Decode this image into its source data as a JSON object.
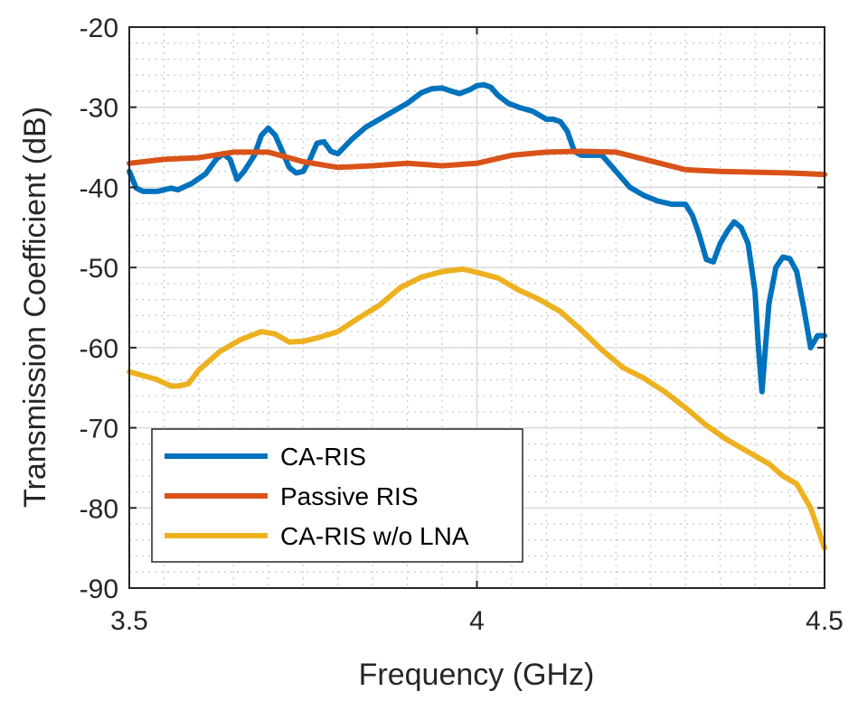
{
  "chart_data": {
    "type": "line",
    "title": "",
    "xlabel": "Frequency (GHz)",
    "ylabel": "Transmission Coefficient (dB)",
    "xlim": [
      3.5,
      4.5
    ],
    "ylim": [
      -90,
      -20
    ],
    "xticks": [
      3.5,
      4,
      4.5
    ],
    "xtick_labels": [
      "3.5",
      "4",
      "4.5"
    ],
    "yticks": [
      -20,
      -30,
      -40,
      -50,
      -60,
      -70,
      -80,
      -90
    ],
    "ytick_labels": [
      "-20",
      "-30",
      "-40",
      "-50",
      "-60",
      "-70",
      "-80",
      "-90"
    ],
    "grid": true,
    "minor_grid": true,
    "legend_position": "bottom-left",
    "series": [
      {
        "name": "CA-RIS",
        "color": "#0072BD",
        "x": [
          3.5,
          3.51,
          3.52,
          3.54,
          3.56,
          3.57,
          3.59,
          3.61,
          3.625,
          3.635,
          3.645,
          3.655,
          3.665,
          3.68,
          3.69,
          3.7,
          3.71,
          3.72,
          3.73,
          3.74,
          3.75,
          3.76,
          3.77,
          3.78,
          3.79,
          3.8,
          3.82,
          3.84,
          3.86,
          3.88,
          3.9,
          3.92,
          3.935,
          3.95,
          3.96,
          3.975,
          3.99,
          4.0,
          4.01,
          4.02,
          4.03,
          4.045,
          4.06,
          4.08,
          4.1,
          4.11,
          4.12,
          4.13,
          4.14,
          4.15,
          4.16,
          4.17,
          4.18,
          4.2,
          4.22,
          4.24,
          4.26,
          4.28,
          4.3,
          4.31,
          4.32,
          4.33,
          4.34,
          4.35,
          4.36,
          4.37,
          4.38,
          4.39,
          4.4,
          4.405,
          4.41,
          4.415,
          4.42,
          4.43,
          4.44,
          4.45,
          4.46,
          4.47,
          4.48,
          4.49,
          4.5
        ],
        "values": [
          -38,
          -40.1,
          -40.5,
          -40.5,
          -40.1,
          -40.3,
          -39.5,
          -38.3,
          -36.5,
          -35.8,
          -36.5,
          -39,
          -38,
          -36,
          -33.5,
          -32.6,
          -33.5,
          -35.5,
          -37.5,
          -38.2,
          -38,
          -36.5,
          -34.5,
          -34.3,
          -35.5,
          -35.8,
          -34,
          -32.5,
          -31.5,
          -30.5,
          -29.5,
          -28.2,
          -27.7,
          -27.6,
          -27.9,
          -28.3,
          -27.8,
          -27.3,
          -27.2,
          -27.5,
          -28.5,
          -29.5,
          -30,
          -30.5,
          -31.5,
          -31.5,
          -31.8,
          -33,
          -35.5,
          -36,
          -36,
          -36,
          -36,
          -38,
          -40,
          -41,
          -41.7,
          -42.1,
          -42.1,
          -43.5,
          -46,
          -49,
          -49.3,
          -47,
          -45.5,
          -44.3,
          -45,
          -47,
          -53,
          -60,
          -65.5,
          -60,
          -54.5,
          -50,
          -48.7,
          -48.9,
          -50.5,
          -55,
          -60,
          -58.5,
          -58.5
        ]
      },
      {
        "name": "Passive RIS",
        "color": "#D95319",
        "x": [
          3.5,
          3.55,
          3.6,
          3.65,
          3.7,
          3.75,
          3.8,
          3.85,
          3.9,
          3.95,
          4.0,
          4.05,
          4.1,
          4.15,
          4.2,
          4.25,
          4.3,
          4.35,
          4.4,
          4.45,
          4.5
        ],
        "values": [
          -37,
          -36.5,
          -36.3,
          -35.6,
          -35.6,
          -36.8,
          -37.5,
          -37.3,
          -37,
          -37.3,
          -37,
          -36,
          -35.6,
          -35.5,
          -35.6,
          -36.7,
          -37.8,
          -38,
          -38.1,
          -38.2,
          -38.4
        ]
      },
      {
        "name": "CA-RIS w/o LNA",
        "color": "#EDB120",
        "x": [
          3.5,
          3.52,
          3.54,
          3.56,
          3.57,
          3.585,
          3.6,
          3.63,
          3.66,
          3.69,
          3.71,
          3.73,
          3.75,
          3.77,
          3.8,
          3.83,
          3.86,
          3.89,
          3.92,
          3.95,
          3.98,
          4.0,
          4.03,
          4.06,
          4.09,
          4.12,
          4.15,
          4.18,
          4.21,
          4.24,
          4.27,
          4.3,
          4.33,
          4.36,
          4.39,
          4.42,
          4.44,
          4.46,
          4.48,
          4.5
        ],
        "values": [
          -63,
          -63.5,
          -64,
          -64.8,
          -64.8,
          -64.5,
          -62.8,
          -60.5,
          -59,
          -58,
          -58.3,
          -59.3,
          -59.2,
          -58.8,
          -58,
          -56.3,
          -54.7,
          -52.5,
          -51.2,
          -50.5,
          -50.2,
          -50.6,
          -51.3,
          -52.8,
          -54,
          -55.5,
          -57.8,
          -60.3,
          -62.5,
          -63.8,
          -65.5,
          -67.5,
          -69.7,
          -71.5,
          -73,
          -74.5,
          -76,
          -77,
          -80,
          -85
        ]
      }
    ]
  }
}
